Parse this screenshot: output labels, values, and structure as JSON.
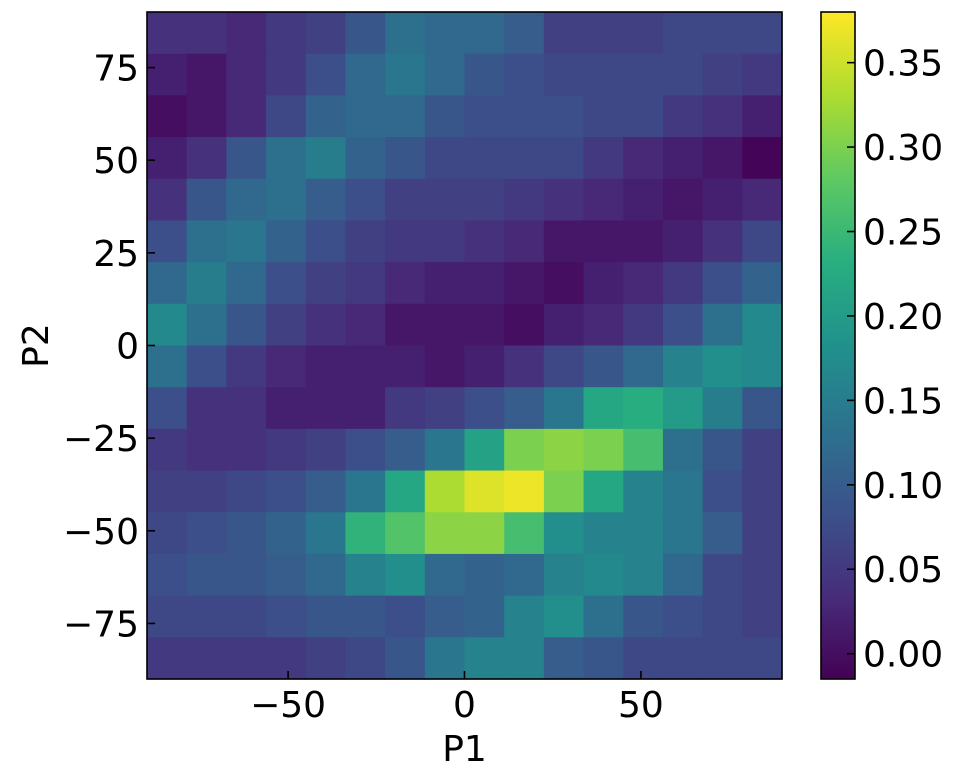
{
  "chart_data": {
    "type": "heatmap",
    "title": "",
    "xlabel": "P1",
    "ylabel": "P2",
    "xlim": [
      -90,
      90
    ],
    "ylim": [
      -90,
      90
    ],
    "grid": false,
    "colormap": "viridis",
    "x_edges": [
      -90,
      -78.75,
      -67.5,
      -56.25,
      -45,
      -33.75,
      -22.5,
      -11.25,
      0,
      11.25,
      22.5,
      33.75,
      45,
      56.25,
      67.5,
      78.75,
      90
    ],
    "y_edges": [
      90,
      78.75,
      67.5,
      56.25,
      45,
      33.75,
      22.5,
      11.25,
      0,
      -11.25,
      -22.5,
      -33.75,
      -45,
      -56.25,
      -67.5,
      -78.75,
      -90
    ],
    "values_rows_top_to_bottom": [
      [
        0.04,
        0.04,
        0.03,
        0.05,
        0.06,
        0.09,
        0.13,
        0.12,
        0.12,
        0.1,
        0.06,
        0.06,
        0.06,
        0.07,
        0.07,
        0.07
      ],
      [
        0.02,
        0.01,
        0.03,
        0.05,
        0.08,
        0.12,
        0.14,
        0.12,
        0.09,
        0.08,
        0.07,
        0.07,
        0.07,
        0.07,
        0.06,
        0.05
      ],
      [
        0.0,
        0.01,
        0.03,
        0.07,
        0.11,
        0.12,
        0.12,
        0.09,
        0.08,
        0.08,
        0.08,
        0.07,
        0.07,
        0.05,
        0.04,
        0.02
      ],
      [
        0.02,
        0.04,
        0.09,
        0.13,
        0.15,
        0.11,
        0.09,
        0.07,
        0.07,
        0.07,
        0.07,
        0.05,
        0.03,
        0.02,
        0.01,
        -0.01
      ],
      [
        0.04,
        0.09,
        0.12,
        0.13,
        0.1,
        0.08,
        0.06,
        0.06,
        0.06,
        0.05,
        0.04,
        0.03,
        0.02,
        0.01,
        0.02,
        0.03
      ],
      [
        0.08,
        0.13,
        0.14,
        0.11,
        0.08,
        0.06,
        0.05,
        0.05,
        0.04,
        0.03,
        0.01,
        0.01,
        0.01,
        0.02,
        0.04,
        0.07
      ],
      [
        0.12,
        0.15,
        0.12,
        0.08,
        0.06,
        0.05,
        0.03,
        0.02,
        0.02,
        0.01,
        0.0,
        0.02,
        0.03,
        0.05,
        0.08,
        0.11
      ],
      [
        0.17,
        0.13,
        0.09,
        0.06,
        0.04,
        0.03,
        0.01,
        0.01,
        0.01,
        0.0,
        0.02,
        0.03,
        0.05,
        0.08,
        0.13,
        0.17
      ],
      [
        0.13,
        0.08,
        0.05,
        0.03,
        0.02,
        0.02,
        0.02,
        0.01,
        0.02,
        0.04,
        0.07,
        0.09,
        0.12,
        0.16,
        0.18,
        0.17
      ],
      [
        0.08,
        0.04,
        0.04,
        0.02,
        0.02,
        0.02,
        0.05,
        0.06,
        0.08,
        0.1,
        0.14,
        0.22,
        0.23,
        0.2,
        0.15,
        0.09
      ],
      [
        0.05,
        0.04,
        0.04,
        0.05,
        0.06,
        0.08,
        0.1,
        0.14,
        0.21,
        0.3,
        0.31,
        0.3,
        0.26,
        0.13,
        0.09,
        0.06
      ],
      [
        0.06,
        0.06,
        0.07,
        0.08,
        0.1,
        0.14,
        0.22,
        0.33,
        0.36,
        0.37,
        0.3,
        0.22,
        0.16,
        0.14,
        0.08,
        0.06
      ],
      [
        0.07,
        0.08,
        0.09,
        0.11,
        0.14,
        0.24,
        0.27,
        0.31,
        0.31,
        0.26,
        0.18,
        0.16,
        0.16,
        0.14,
        0.1,
        0.06
      ],
      [
        0.08,
        0.09,
        0.09,
        0.1,
        0.12,
        0.16,
        0.18,
        0.12,
        0.11,
        0.12,
        0.16,
        0.17,
        0.16,
        0.12,
        0.07,
        0.06
      ],
      [
        0.07,
        0.07,
        0.07,
        0.08,
        0.09,
        0.09,
        0.08,
        0.1,
        0.11,
        0.16,
        0.18,
        0.13,
        0.09,
        0.08,
        0.07,
        0.06
      ],
      [
        0.05,
        0.05,
        0.05,
        0.05,
        0.06,
        0.07,
        0.09,
        0.14,
        0.16,
        0.16,
        0.1,
        0.09,
        0.07,
        0.07,
        0.07,
        0.07
      ]
    ],
    "x_ticks": [
      {
        "value": -50,
        "label": "−50"
      },
      {
        "value": 0,
        "label": "0"
      },
      {
        "value": 50,
        "label": "50"
      }
    ],
    "y_ticks": [
      {
        "value": 75,
        "label": "75"
      },
      {
        "value": 50,
        "label": "50"
      },
      {
        "value": 25,
        "label": "25"
      },
      {
        "value": 0,
        "label": "0"
      },
      {
        "value": -25,
        "label": "−25"
      },
      {
        "value": -50,
        "label": "−50"
      },
      {
        "value": -75,
        "label": "−75"
      }
    ],
    "colorbar": {
      "range": [
        -0.015,
        0.38
      ],
      "ticks": [
        {
          "value": 0.35,
          "label": "0.35"
        },
        {
          "value": 0.3,
          "label": "0.30"
        },
        {
          "value": 0.25,
          "label": "0.25"
        },
        {
          "value": 0.2,
          "label": "0.20"
        },
        {
          "value": 0.15,
          "label": "0.15"
        },
        {
          "value": 0.1,
          "label": "0.10"
        },
        {
          "value": 0.05,
          "label": "0.05"
        },
        {
          "value": 0.0,
          "label": "0.00"
        }
      ]
    }
  }
}
